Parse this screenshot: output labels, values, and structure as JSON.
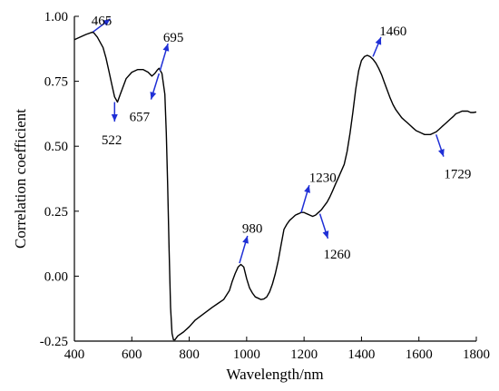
{
  "chart_data": {
    "type": "line",
    "xlabel": "Wavelength/nm",
    "ylabel": "Correlation coefficient",
    "xlim": [
      400,
      1800
    ],
    "ylim": [
      -0.25,
      1.0
    ],
    "xticks": [
      400,
      600,
      800,
      1000,
      1200,
      1400,
      1600,
      1800
    ],
    "yticks": [
      -0.25,
      0.0,
      0.25,
      0.5,
      0.75,
      1.0
    ],
    "ytick_labels": [
      "-0.25",
      "0.00",
      "0.25",
      "0.50",
      "0.75",
      "1.00"
    ],
    "grid": false,
    "legend": "none",
    "line_color": "#000000",
    "arrow_color": "#1f2fd6",
    "series": [
      {
        "x": [
          400,
          420,
          440,
          465,
          480,
          500,
          510,
          520,
          530,
          540,
          550,
          560,
          580,
          600,
          620,
          640,
          657,
          670,
          680,
          690,
          695,
          705,
          715,
          720,
          725,
          730,
          735,
          740,
          745,
          750,
          760,
          780,
          800,
          820,
          850,
          880,
          900,
          920,
          940,
          950,
          960,
          970,
          980,
          990,
          1000,
          1010,
          1020,
          1030,
          1040,
          1050,
          1060,
          1070,
          1080,
          1090,
          1100,
          1110,
          1120,
          1130,
          1140,
          1150,
          1160,
          1170,
          1180,
          1190,
          1200,
          1210,
          1220,
          1230,
          1240,
          1250,
          1260,
          1270,
          1280,
          1290,
          1300,
          1310,
          1320,
          1340,
          1350,
          1360,
          1370,
          1380,
          1390,
          1400,
          1410,
          1420,
          1430,
          1440,
          1450,
          1460,
          1470,
          1480,
          1490,
          1500,
          1510,
          1520,
          1530,
          1540,
          1550,
          1560,
          1570,
          1580,
          1590,
          1600,
          1610,
          1620,
          1630,
          1640,
          1650,
          1660,
          1670,
          1680,
          1690,
          1700,
          1710,
          1720,
          1729,
          1740,
          1750,
          1760,
          1770,
          1780,
          1790,
          1800
        ],
        "y": [
          0.91,
          0.92,
          0.93,
          0.94,
          0.92,
          0.88,
          0.84,
          0.79,
          0.74,
          0.69,
          0.67,
          0.7,
          0.76,
          0.785,
          0.795,
          0.795,
          0.785,
          0.77,
          0.78,
          0.795,
          0.8,
          0.78,
          0.7,
          0.55,
          0.35,
          0.1,
          -0.12,
          -0.22,
          -0.245,
          -0.245,
          -0.23,
          -0.215,
          -0.195,
          -0.17,
          -0.145,
          -0.12,
          -0.105,
          -0.09,
          -0.055,
          -0.02,
          0.01,
          0.035,
          0.045,
          0.035,
          -0.01,
          -0.045,
          -0.065,
          -0.08,
          -0.085,
          -0.09,
          -0.088,
          -0.08,
          -0.06,
          -0.03,
          0.01,
          0.06,
          0.12,
          0.18,
          0.2,
          0.215,
          0.225,
          0.235,
          0.24,
          0.245,
          0.245,
          0.24,
          0.235,
          0.23,
          0.235,
          0.245,
          0.255,
          0.27,
          0.285,
          0.305,
          0.33,
          0.355,
          0.38,
          0.43,
          0.48,
          0.55,
          0.63,
          0.72,
          0.79,
          0.83,
          0.845,
          0.85,
          0.845,
          0.835,
          0.82,
          0.8,
          0.775,
          0.745,
          0.715,
          0.685,
          0.66,
          0.64,
          0.625,
          0.61,
          0.6,
          0.59,
          0.58,
          0.57,
          0.56,
          0.555,
          0.55,
          0.545,
          0.545,
          0.545,
          0.55,
          0.555,
          0.565,
          0.575,
          0.585,
          0.595,
          0.605,
          0.615,
          0.625,
          0.63,
          0.635,
          0.635,
          0.635,
          0.63,
          0.63,
          0.632
        ]
      }
    ],
    "annotations": [
      {
        "label": "465",
        "x": 465,
        "y": 0.94,
        "dx": 60,
        "dy": 0.05,
        "lx": 495,
        "ly": 0.985
      },
      {
        "label": "522",
        "x": 540,
        "y": 0.67,
        "dx": 0,
        "dy": -0.075,
        "lx": 530,
        "ly": 0.525
      },
      {
        "label": "657",
        "x": 695,
        "y": 0.78,
        "dx": -28,
        "dy": -0.1,
        "lx": 627,
        "ly": 0.615
      },
      {
        "label": "695",
        "x": 698,
        "y": 0.79,
        "dx": 28,
        "dy": 0.105,
        "lx": 745,
        "ly": 0.92
      },
      {
        "label": "980",
        "x": 975,
        "y": 0.05,
        "dx": 28,
        "dy": 0.105,
        "lx": 1020,
        "ly": 0.185
      },
      {
        "label": "1230",
        "x": 1190,
        "y": 0.245,
        "dx": 28,
        "dy": 0.105,
        "lx": 1265,
        "ly": 0.38
      },
      {
        "label": "1260",
        "x": 1255,
        "y": 0.24,
        "dx": 28,
        "dy": -0.095,
        "lx": 1315,
        "ly": 0.085
      },
      {
        "label": "1460",
        "x": 1440,
        "y": 0.845,
        "dx": 28,
        "dy": 0.075,
        "lx": 1510,
        "ly": 0.945
      },
      {
        "label": "1729",
        "x": 1660,
        "y": 0.545,
        "dx": 26,
        "dy": -0.085,
        "lx": 1735,
        "ly": 0.395
      }
    ]
  }
}
